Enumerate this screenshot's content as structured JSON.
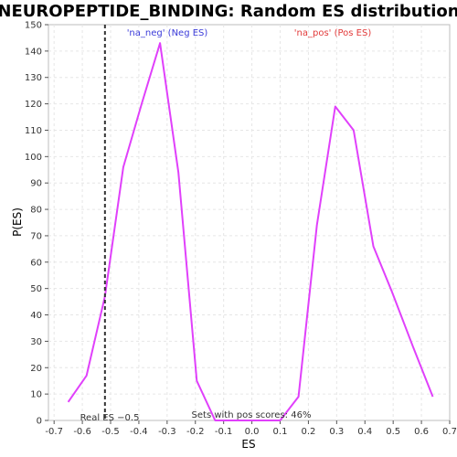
{
  "chart_data": {
    "type": "line",
    "title": "NEUROPEPTIDE_BINDING: Random ES distribution",
    "xlabel": "ES",
    "ylabel": "P(ES)",
    "xlim": [
      -0.72,
      0.7
    ],
    "ylim": [
      0,
      150
    ],
    "x_ticks": [
      -0.7,
      -0.6,
      -0.5,
      -0.4,
      -0.3,
      -0.2,
      -0.1,
      0.0,
      0.1,
      0.2,
      0.3,
      0.4,
      0.5,
      0.6,
      0.7
    ],
    "x_tick_labels": [
      "-0.7",
      "-0.6",
      "-0.5",
      "-0.4",
      "-0.3",
      "-0.2",
      "-0.1",
      "0.0",
      "0.1",
      "0.2",
      "0.3",
      "0.4",
      "0.5",
      "0.6",
      "0.7"
    ],
    "y_ticks": [
      0,
      10,
      20,
      30,
      40,
      50,
      60,
      70,
      80,
      90,
      100,
      110,
      120,
      130,
      140,
      150
    ],
    "grid": true,
    "series": [
      {
        "color": "#e040fb",
        "x": [
          -0.65,
          -0.585,
          -0.52,
          -0.455,
          -0.39,
          -0.325,
          -0.26,
          -0.195,
          -0.13,
          -0.065,
          0.0,
          0.1,
          0.165,
          0.23,
          0.295,
          0.36,
          0.43,
          0.495,
          0.57,
          0.64
        ],
        "y": [
          7,
          17,
          47,
          96,
          120,
          143,
          94,
          15,
          0,
          0,
          0,
          0,
          9,
          74,
          119,
          110,
          66,
          49,
          28,
          9
        ]
      }
    ],
    "real_es": -0.52,
    "annotations": {
      "neg_label": "'na_neg' (Neg ES)",
      "neg_color": "#3b3bd9",
      "pos_label": "'na_pos' (Pos ES)",
      "pos_color": "#e23b3b",
      "real_es_label": "Real ES −0.5",
      "sets_label": "Sets with pos scores: 46%"
    }
  }
}
